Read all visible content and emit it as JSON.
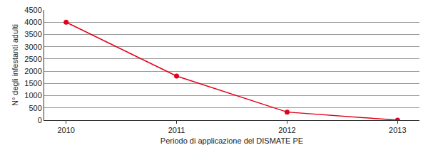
{
  "chart_data": {
    "type": "line",
    "xlabel": "Periodo di applicazione del DISMATE PE",
    "ylabel": "N° degli infestanti adulti",
    "categories": [
      "2010",
      "2011",
      "2012",
      "2013"
    ],
    "values": [
      4000,
      1800,
      330,
      0
    ],
    "color": "#e2001a",
    "marker": "circle",
    "ylim": [
      0,
      4500
    ],
    "yticks": [
      0,
      500,
      1000,
      1500,
      2000,
      2500,
      3000,
      3500,
      4000,
      4500
    ],
    "grid": true
  }
}
